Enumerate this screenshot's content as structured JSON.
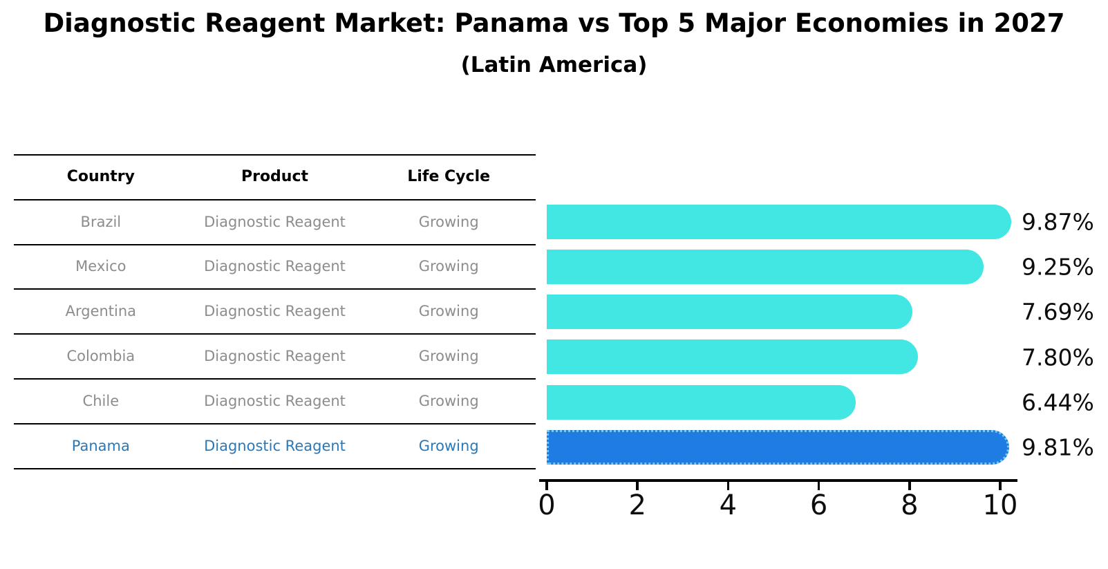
{
  "title": "Diagnostic Reagent Market: Panama vs Top 5 Major Economies in 2027",
  "subtitle": "(Latin America)",
  "table": {
    "headers": [
      "Country",
      "Product",
      "Life Cycle"
    ],
    "rows": [
      {
        "country": "Brazil",
        "product": "Diagnostic Reagent",
        "life_cycle": "Growing",
        "highlight": false
      },
      {
        "country": "Mexico",
        "product": "Diagnostic Reagent",
        "life_cycle": "Growing",
        "highlight": false
      },
      {
        "country": "Argentina",
        "product": "Diagnostic Reagent",
        "life_cycle": "Growing",
        "highlight": false
      },
      {
        "country": "Colombia",
        "product": "Diagnostic Reagent",
        "life_cycle": "Growing",
        "highlight": false
      },
      {
        "country": "Chile",
        "product": "Diagnostic Reagent",
        "life_cycle": "Growing",
        "highlight": false
      },
      {
        "country": "Panama",
        "product": "Diagnostic Reagent",
        "life_cycle": "Growing",
        "highlight": true
      }
    ]
  },
  "chart_data": {
    "type": "bar",
    "orientation": "horizontal",
    "title": "Diagnostic Reagent Market: Panama vs Top 5 Major Economies in 2027 (Latin America)",
    "categories": [
      "Brazil",
      "Mexico",
      "Argentina",
      "Colombia",
      "Chile",
      "Panama"
    ],
    "values": [
      9.87,
      9.25,
      7.69,
      7.8,
      6.44,
      9.81
    ],
    "value_labels": [
      "9.87%",
      "9.25%",
      "7.69%",
      "7.80%",
      "6.44%",
      "9.81%"
    ],
    "unit": "%",
    "x_ticks": [
      0,
      2,
      4,
      6,
      8,
      10
    ],
    "xlim": [
      0,
      10.4
    ],
    "grid": false,
    "legend": false,
    "highlight_index": 5,
    "bar_color": "#42E6E2",
    "highlight_bar_color": "#1E7CE2",
    "highlight_border_color": "#74C8F2"
  },
  "colors": {
    "table_text": "#8c8c8c",
    "header_text": "#000000",
    "highlight_text": "#2979b9",
    "axis": "#000000"
  }
}
